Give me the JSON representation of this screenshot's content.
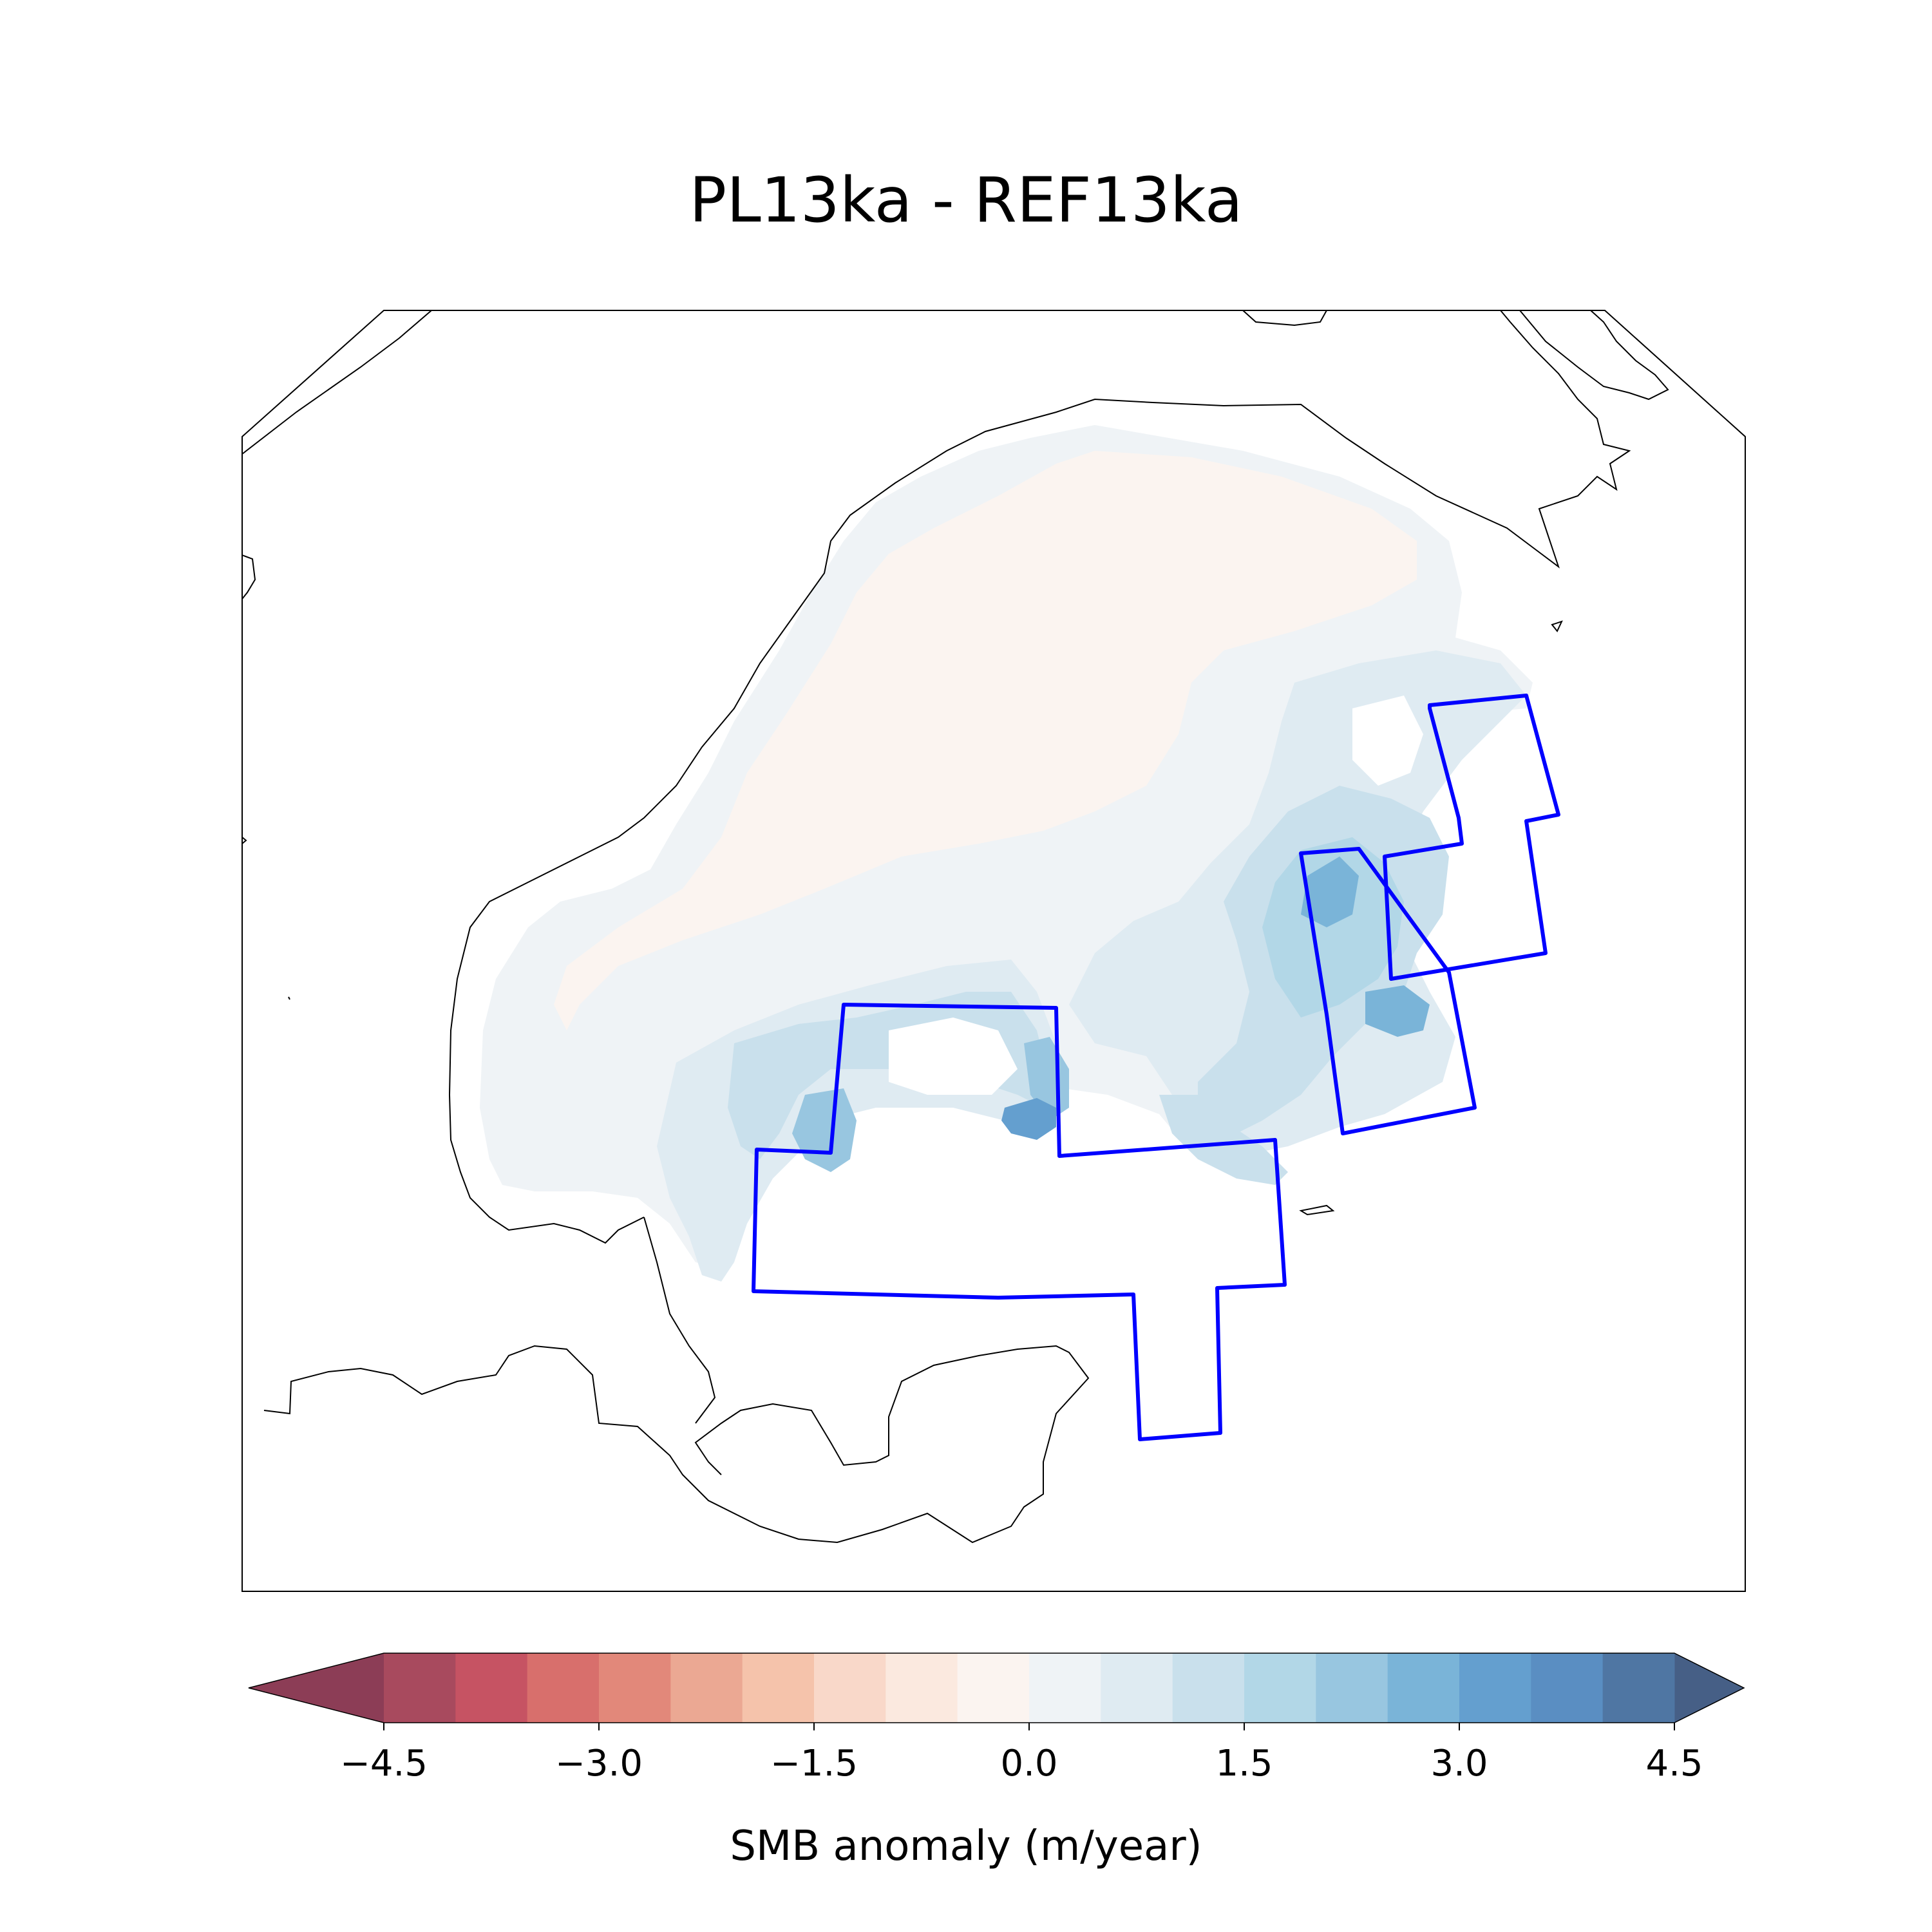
{
  "title": "PL13ka - REF13ka",
  "colorbar": {
    "label": "SMB anomaly (m/year)",
    "ticks": [
      "−4.5",
      "−3.0",
      "−1.5",
      "0.0",
      "1.5",
      "3.0",
      "4.5"
    ],
    "tick_values": [
      -4.5,
      -3.0,
      -1.5,
      0.0,
      1.5,
      3.0,
      4.5
    ],
    "range": [
      -5.0,
      5.0
    ],
    "step": 0.5,
    "extend": "both",
    "colors": [
      "#8c3d56",
      "#a84a5e",
      "#c65363",
      "#d86f6c",
      "#e2887a",
      "#eba893",
      "#f5c3ab",
      "#f9d8c9",
      "#fbe9df",
      "#fbf4f0",
      "#eff3f6",
      "#dfebf2",
      "#c9e0ec",
      "#b2d7e7",
      "#98c6e0",
      "#7ab4d8",
      "#649fcf",
      "#5a8ec2",
      "#4f76a3",
      "#465f86"
    ],
    "under_color": "#8c3d56",
    "over_color": "#465f86"
  },
  "map": {
    "outline_color": "#000000",
    "region_color": "#0000ff",
    "field_colors": {
      "near_zero_positive": "#eff3f6",
      "near_zero_negative": "#fbf4f0",
      "low": "#dfebf2",
      "mid": "#c9e0ec",
      "high": "#b2d7e7",
      "peak": "#7ab4d8"
    }
  }
}
